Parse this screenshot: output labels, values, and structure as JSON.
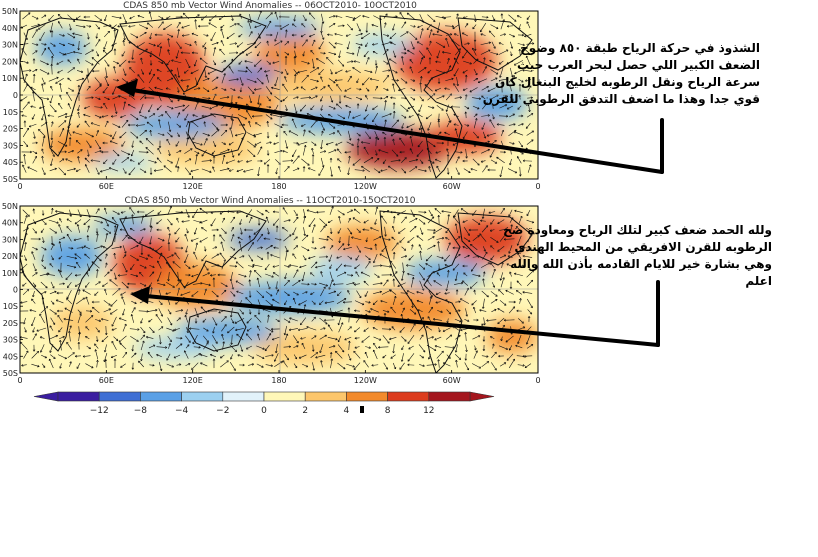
{
  "panels": [
    {
      "title": "CDAS 850 mb Vector Wind Anomalies -- 06OCT2010- 10OCT2010",
      "lat_labels": [
        "50N",
        "40N",
        "30N",
        "20N",
        "10N",
        "0",
        "10S",
        "20S",
        "30S",
        "40S",
        "50S"
      ],
      "lon_labels": [
        "0",
        "60E",
        "120E",
        "180",
        "120W",
        "60W",
        "0"
      ]
    },
    {
      "title": "CDAS 850 mb Vector Wind Anomalies -- 11OCT2010-15OCT2010",
      "lat_labels": [
        "50N",
        "40N",
        "30N",
        "20N",
        "10N",
        "0",
        "10S",
        "20S",
        "30S",
        "40S",
        "50S"
      ],
      "lon_labels": [
        "0",
        "60E",
        "120E",
        "180",
        "120W",
        "60W",
        "0"
      ]
    }
  ],
  "colorbar": {
    "ticks": [
      "−12",
      "−8",
      "−4",
      "−2",
      "0",
      "2",
      "4",
      "8",
      "12"
    ],
    "colors": [
      "#3b1ea0",
      "#3f6fd4",
      "#5aa0e6",
      "#9cd0f0",
      "#e2f2fa",
      "#fff7b8",
      "#fcc66c",
      "#f28a2c",
      "#dc3c1e",
      "#a4161e"
    ]
  },
  "annotations": [
    {
      "lines": [
        "الشذوذ في حركة الرياح طبقة ٨٥٠ وضوح",
        "الضعف الكبير اللي حصل لبحر العرب حيث",
        "سرعة الرياح ونقل الرطوبه لخليج البنغال كان",
        "قوي جدا وهذا ما اضعف التدفق الرطوبي للقرن"
      ]
    },
    {
      "lines": [
        "ولله الحمد ضعف كبير لتلك الرياح ومعاودة ضخ",
        "الرطوبه للقرن الافريقي من المحيط الهندي",
        "وهي بشارة خير للايام القادمه بأذن الله والله",
        "اعلم"
      ]
    }
  ],
  "chart_data": [
    {
      "type": "heatmap",
      "title": "CDAS 850 mb Vector Wind Anomalies -- 06OCT2010- 10OCT2010",
      "variable": "850 mb vector wind anomalies (shading: magnitude, arrows: direction)",
      "x": {
        "ticks": [
          "0",
          "60E",
          "120E",
          "180",
          "120W",
          "60W",
          "0"
        ],
        "range_deg_east": [
          0,
          360
        ]
      },
      "y": {
        "ticks": [
          "50N",
          "40N",
          "30N",
          "20N",
          "10N",
          "0",
          "10S",
          "20S",
          "30S",
          "40S",
          "50S"
        ],
        "range_deg": [
          -50,
          50
        ]
      },
      "shading_levels": [
        -12,
        -8,
        -4,
        -2,
        0,
        2,
        4,
        8,
        12
      ]
    },
    {
      "type": "heatmap",
      "title": "CDAS 850 mb Vector Wind Anomalies -- 11OCT2010-15OCT2010",
      "variable": "850 mb vector wind anomalies (shading: magnitude, arrows: direction)",
      "x": {
        "ticks": [
          "0",
          "60E",
          "120E",
          "180",
          "120W",
          "60W",
          "0"
        ],
        "range_deg_east": [
          0,
          360
        ]
      },
      "y": {
        "ticks": [
          "50N",
          "40N",
          "30N",
          "20N",
          "10N",
          "0",
          "10S",
          "20S",
          "30S",
          "40S",
          "50S"
        ],
        "range_deg": [
          -50,
          50
        ]
      },
      "shading_levels": [
        -12,
        -8,
        -4,
        -2,
        0,
        2,
        4,
        8,
        12
      ]
    }
  ]
}
